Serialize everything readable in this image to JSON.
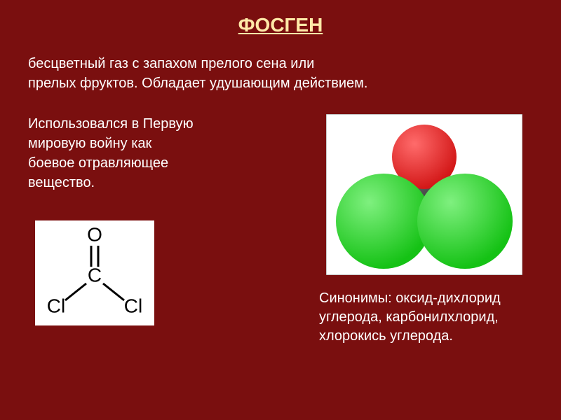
{
  "slide": {
    "background_color": "#7a0f0f",
    "text_color": "#ffffff",
    "title": "ФОСГЕН",
    "title_fontsize": 28,
    "title_color": "#ffe9a8",
    "intro_line1": "бесцветный газ с запахом прелого сена или",
    "intro_line2": "прелых фруктов. Обладает удушающим действием.",
    "body_fontsize": 20,
    "usage_line1": "Использовался в Первую",
    "usage_line2": "мировую войну как",
    "usage_line3": "боевое отравляющее",
    "usage_line4": "вещество.",
    "synonyms_line1": "Синонимы: оксид-дихлорид",
    "synonyms_line2": "углерода, карбонилхлорид,",
    "synonyms_line3": "хлорокись углерода."
  },
  "structural_formula": {
    "background": "#ffffff",
    "line_color": "#000000",
    "text_color": "#000000",
    "atoms": {
      "C": "C",
      "O": "O",
      "Cl_left": "Cl",
      "Cl_right": "Cl"
    },
    "line_width": 3,
    "font_size": 28
  },
  "molecule_3d": {
    "background": "#ffffff",
    "border_color": "#888888",
    "oxygen_color": "#d31818",
    "oxygen_highlight": "#ff6b6b",
    "carbon_color": "#2a2a2a",
    "carbon_highlight": "#666666",
    "chlorine_color": "#15c215",
    "chlorine_highlight": "#7ff07f",
    "oxygen_radius": 46,
    "carbon_radius": 40,
    "chlorine_radius": 68
  }
}
